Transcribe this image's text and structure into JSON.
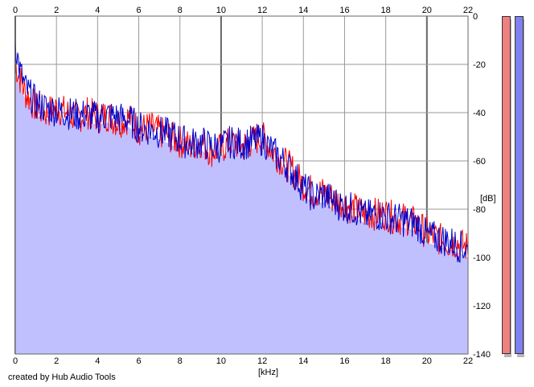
{
  "footer_text": "created by Hub Audio Tools",
  "colors": {
    "fill": "#c0c0ff",
    "left_channel": "#ff0000",
    "right_channel": "#0000cc",
    "meter_left": "#f08080",
    "meter_right": "#8080f0"
  },
  "chart_data": {
    "type": "line",
    "xlabel": "[kHz]",
    "ylabel": "[dB]",
    "xlim": [
      0,
      22
    ],
    "ylim": [
      -140,
      0
    ],
    "x_ticks": [
      "0",
      "2",
      "4",
      "6",
      "8",
      "10",
      "12",
      "14",
      "16",
      "18",
      "20",
      "22"
    ],
    "y_ticks": [
      "0",
      "-20",
      "-40",
      "-60",
      "-80",
      "-100",
      "-120",
      "-140"
    ],
    "grid": true,
    "series": [
      {
        "color": "#ff0000",
        "x": [
          0,
          0.2,
          0.5,
          1,
          1.5,
          2,
          2.5,
          3,
          3.5,
          4,
          4.5,
          5,
          5.5,
          6,
          6.5,
          7,
          7.5,
          8,
          8.5,
          9,
          9.5,
          10,
          10.5,
          11,
          11.5,
          12,
          12.5,
          13,
          13.5,
          14,
          14.5,
          15,
          15.5,
          16,
          16.5,
          17,
          17.5,
          18,
          18.5,
          19,
          19.5,
          20,
          20.5,
          21,
          21.5,
          22
        ],
        "y": [
          -20,
          -25,
          -32,
          -38,
          -40,
          -38,
          -40,
          -42,
          -40,
          -42,
          -41,
          -44,
          -42,
          -47,
          -46,
          -48,
          -50,
          -52,
          -54,
          -52,
          -56,
          -55,
          -52,
          -54,
          -52,
          -50,
          -56,
          -60,
          -64,
          -70,
          -73,
          -73,
          -76,
          -78,
          -80,
          -82,
          -82,
          -82,
          -84,
          -84,
          -86,
          -90,
          -92,
          -94,
          -94,
          -96
        ]
      },
      {
        "color": "#0000cc",
        "x": [
          0,
          0.2,
          0.5,
          1,
          1.5,
          2,
          2.5,
          3,
          3.5,
          4,
          4.5,
          5,
          5.5,
          6,
          6.5,
          7,
          7.5,
          8,
          8.5,
          9,
          9.5,
          10,
          10.5,
          11,
          11.5,
          12,
          12.5,
          13,
          13.5,
          14,
          14.5,
          15,
          15.5,
          16,
          16.5,
          17,
          17.5,
          18,
          18.5,
          19,
          19.5,
          20,
          20.5,
          21,
          21.5,
          22
        ],
        "y": [
          -10,
          -22,
          -30,
          -36,
          -38,
          -39,
          -40,
          -41,
          -41,
          -42,
          -41,
          -42,
          -43,
          -46,
          -47,
          -48,
          -49,
          -51,
          -53,
          -52,
          -54,
          -54,
          -52,
          -53,
          -52,
          -51,
          -56,
          -60,
          -65,
          -71,
          -75,
          -74,
          -77,
          -79,
          -80,
          -83,
          -82,
          -83,
          -84,
          -85,
          -86,
          -91,
          -92,
          -93,
          -95,
          -97
        ]
      }
    ]
  }
}
